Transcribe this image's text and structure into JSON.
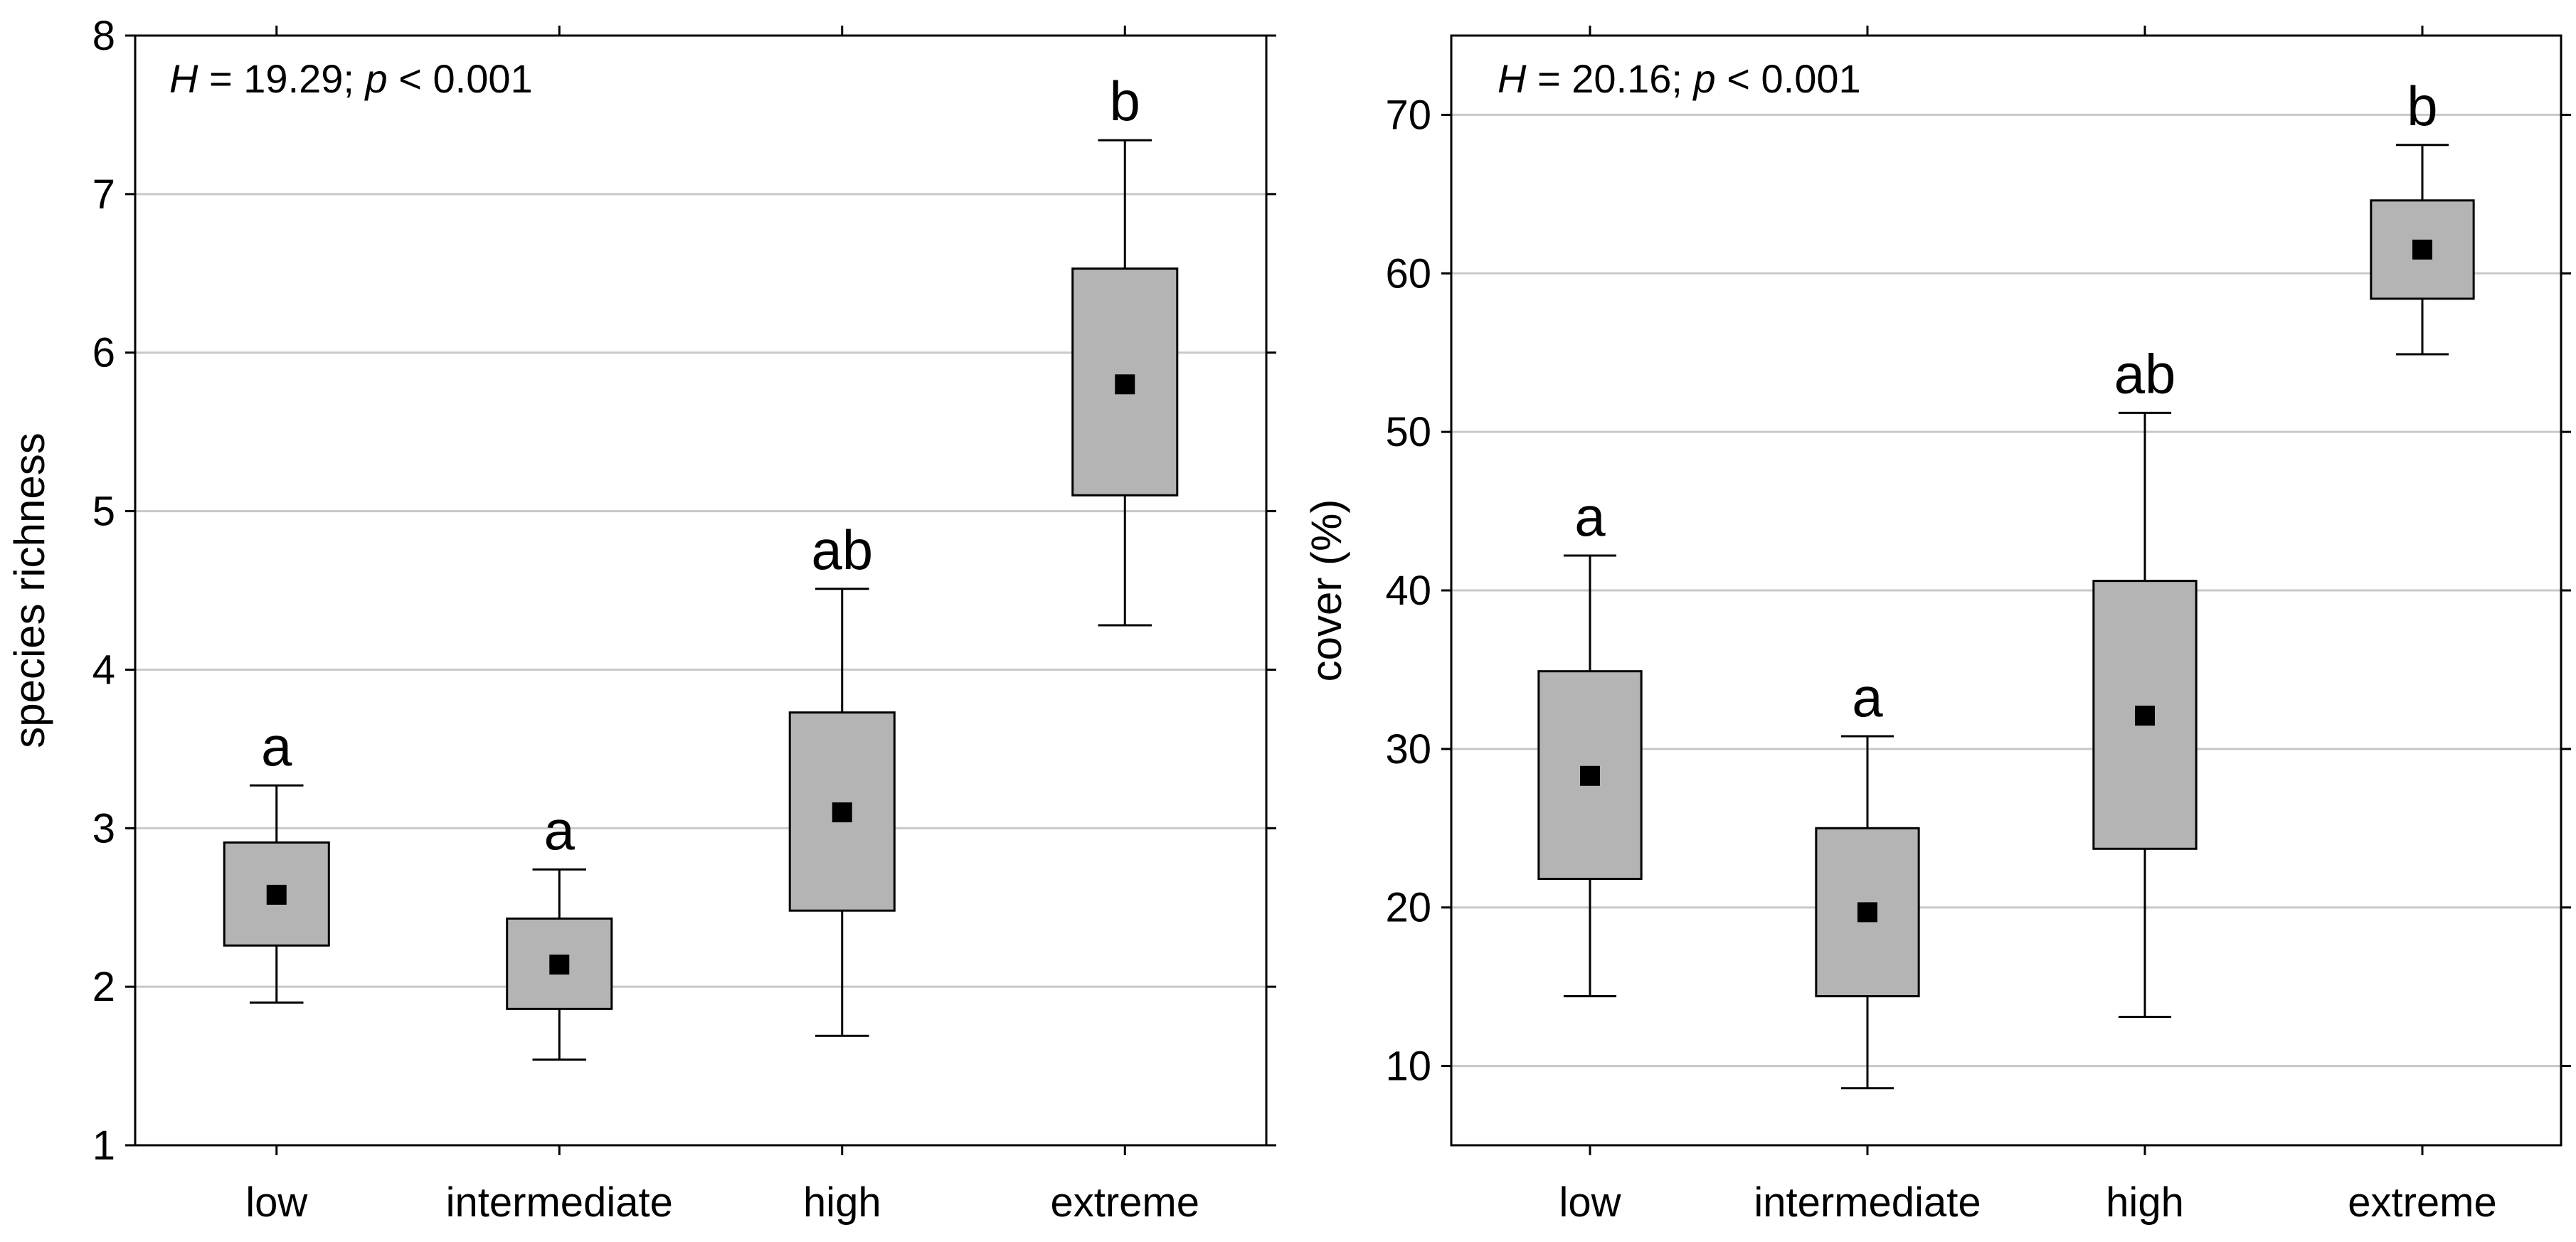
{
  "chart_data": [
    {
      "type": "box",
      "title": "",
      "xlabel": "",
      "ylabel": "species richness",
      "ylim": [
        1,
        8
      ],
      "yticks": [
        1,
        2,
        3,
        4,
        5,
        6,
        7,
        8
      ],
      "grid": true,
      "annotation": {
        "prefix": "H",
        "text": " = 19.29; ",
        "p_label": "p",
        "p_text": " < 0.001"
      },
      "categories": [
        "low",
        "intermediate",
        "high",
        "extreme"
      ],
      "boxes": [
        {
          "category": "low",
          "center": 2.58,
          "box_low": 2.26,
          "box_high": 2.91,
          "whisker_low": 1.9,
          "whisker_high": 3.27,
          "letter": "a"
        },
        {
          "category": "intermediate",
          "center": 2.14,
          "box_low": 1.86,
          "box_high": 2.43,
          "whisker_low": 1.54,
          "whisker_high": 2.74,
          "letter": "a"
        },
        {
          "category": "high",
          "center": 3.1,
          "box_low": 2.48,
          "box_high": 3.73,
          "whisker_low": 1.69,
          "whisker_high": 4.51,
          "letter": "ab"
        },
        {
          "category": "extreme",
          "center": 5.8,
          "box_low": 5.1,
          "box_high": 6.53,
          "whisker_low": 4.28,
          "whisker_high": 7.34,
          "letter": "b"
        }
      ]
    },
    {
      "type": "box",
      "title": "",
      "xlabel": "",
      "ylabel": "cover (%)",
      "ylim": [
        5,
        75
      ],
      "yticks": [
        10,
        20,
        30,
        40,
        50,
        60,
        70
      ],
      "grid": true,
      "annotation": {
        "prefix": "H",
        "text": " = 20.16; ",
        "p_label": "p",
        "p_text": " < 0.001"
      },
      "categories": [
        "low",
        "intermediate",
        "high",
        "extreme"
      ],
      "boxes": [
        {
          "category": "low",
          "center": 28.3,
          "box_low": 21.8,
          "box_high": 34.9,
          "whisker_low": 14.4,
          "whisker_high": 42.2,
          "letter": "a"
        },
        {
          "category": "intermediate",
          "center": 19.7,
          "box_low": 14.4,
          "box_high": 25.0,
          "whisker_low": 8.6,
          "whisker_high": 30.8,
          "letter": "a"
        },
        {
          "category": "high",
          "center": 32.1,
          "box_low": 23.7,
          "box_high": 40.6,
          "whisker_low": 13.1,
          "whisker_high": 51.2,
          "letter": "ab"
        },
        {
          "category": "extreme",
          "center": 61.5,
          "box_low": 58.4,
          "box_high": 64.6,
          "whisker_low": 54.9,
          "whisker_high": 68.1,
          "letter": "b"
        }
      ]
    }
  ]
}
